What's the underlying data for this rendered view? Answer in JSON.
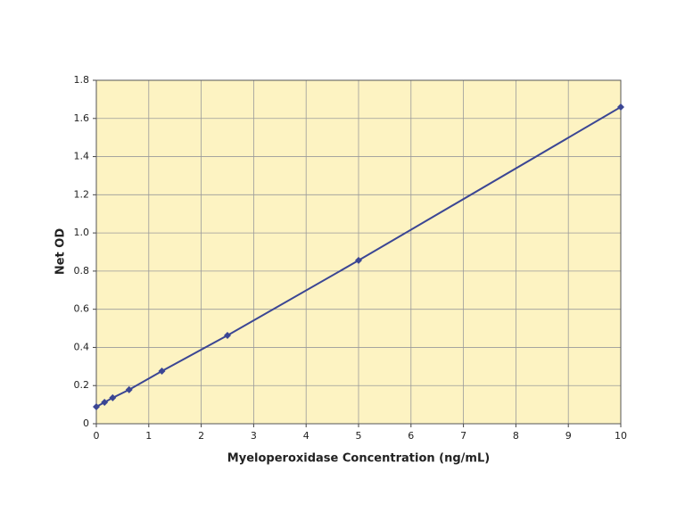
{
  "chart_data": {
    "type": "line",
    "x_label": "Myeloperoxidase Concentration (ng/mL)",
    "y_label": "Net OD",
    "x": [
      0,
      0.156,
      0.312,
      0.625,
      1.25,
      2.5,
      5,
      10
    ],
    "series": [
      {
        "color": "#3b4694",
        "values": [
          0.089,
          0.112,
          0.136,
          0.178,
          0.276,
          0.463,
          0.856,
          1.66
        ]
      }
    ],
    "xlim": [
      0,
      10
    ],
    "xticks": [
      0,
      1,
      2,
      3,
      4,
      5,
      6,
      7,
      8,
      9,
      10
    ],
    "ylim": [
      0,
      1.8
    ],
    "yticks": [
      0,
      0.2,
      0.4,
      0.6,
      0.8,
      {
        "value": 1,
        "label": "1.0"
      },
      1.2,
      1.4,
      1.6,
      1.8
    ],
    "grid": true,
    "background": "#fdf3c2"
  }
}
